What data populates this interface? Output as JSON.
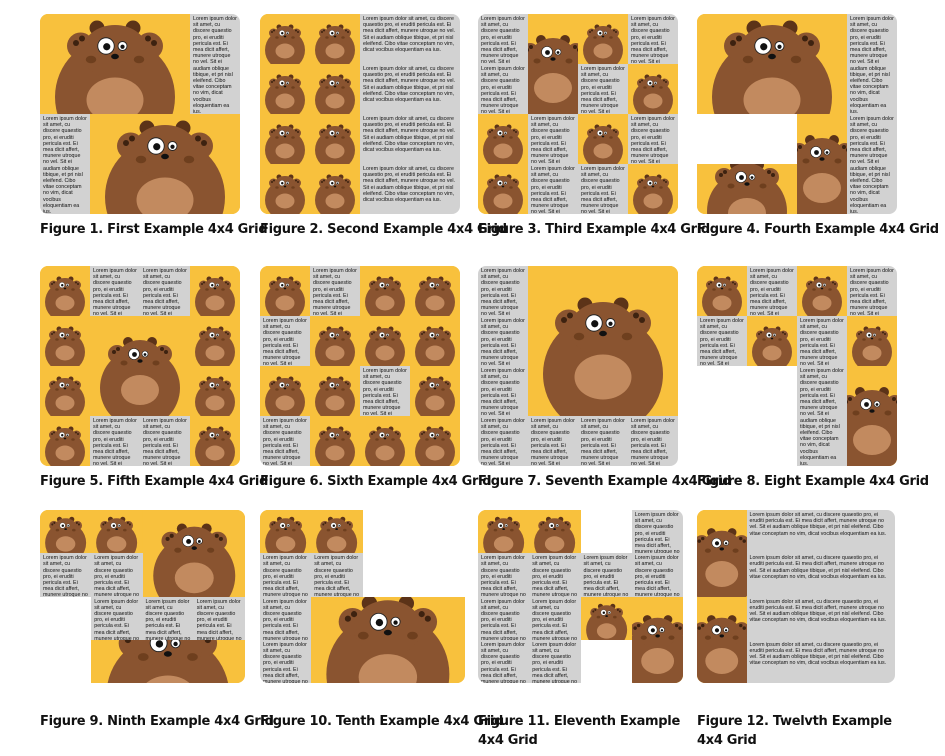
{
  "lorem": "Lorem ipsum dolor sit amet, cu discere quaestio pro, ei eruditi pericula est. Ei mea dicit affert, munere utroque no vel. Sit ei audiam oblique tibique, et pri nisl eleifend. Cibo vitae conceptam no vim, dicat vocibus eloquentiam ea ius.",
  "lorem_short": "Lorem ipsum dolor sit amet, cu discere quaestio pro, ei eruditi pericula est. Ei mea dicit affert, munere utroque no vel. Sit ei",
  "colors": {
    "image_bg": "#f8c13d",
    "text_bg": "#d2d2d2",
    "bear_body": "#8a5430",
    "bear_belly": "#c28a5f"
  },
  "figures": [
    {
      "caption": "Figure 1. First Example 4x4 Grid",
      "icon": "bear-icon"
    },
    {
      "caption": "Figure 2. Second Example 4x4 Grid",
      "icon": "bear-icon"
    },
    {
      "caption": "Figure 3. Third Example 4x4 Grid",
      "icon": "bear-icon"
    },
    {
      "caption": "Figure 4. Fourth Example 4x4 Grid",
      "icon": "bear-icon"
    },
    {
      "caption": "Figure 5. Fifth Example 4x4 Grid",
      "icon": "bear-icon"
    },
    {
      "caption": "Figure 6. Sixth Example 4x4 Grid",
      "icon": "bear-icon"
    },
    {
      "caption": "Figure 7. Seventh Example 4x4 Grid",
      "icon": "bear-icon"
    },
    {
      "caption": "Figure 8. Eight Example 4x4 Grid",
      "icon": "bear-icon"
    },
    {
      "caption": "Figure 9. Ninth Example 4x4 Grid",
      "icon": "bear-icon"
    },
    {
      "caption": "Figure 10. Tenth Example 4x4 Grid",
      "icon": "bear-icon"
    },
    {
      "caption": "Figure 11. Eleventh Example 4x4 Grid",
      "icon": "bear-icon"
    },
    {
      "caption": "Figure 12. Twelvth Example 4x4 Grid",
      "icon": "bear-icon"
    }
  ]
}
